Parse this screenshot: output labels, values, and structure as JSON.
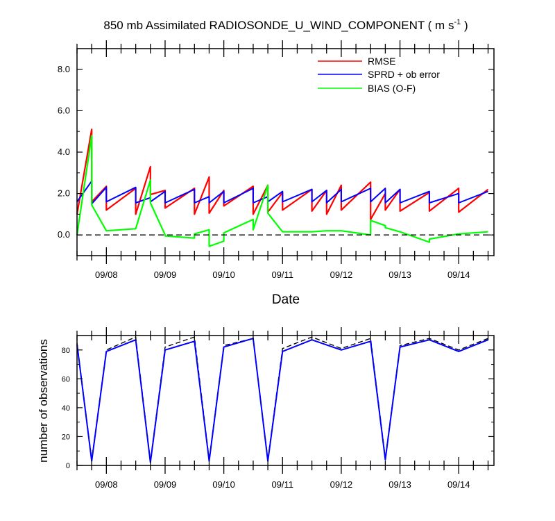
{
  "title_main": "850 mb Assimilated RADIOSONDE_U_WIND_COMPONENT ( m s",
  "title_exp": "-1",
  "title_close": " )",
  "colors": {
    "rmse": "#ff0000",
    "sprd": "#0000ff",
    "bias": "#00ff00",
    "zero": "#000000",
    "obs": "#000000"
  },
  "chart_data": [
    {
      "type": "line",
      "ylim": [
        -1.0,
        9.0
      ],
      "xlim": [
        -0.5,
        6.6
      ],
      "yticks": [
        0,
        2,
        4,
        6,
        8
      ],
      "ytick_labels": [
        "0.0",
        "2.0",
        "4.0",
        "6.0",
        "8.0"
      ],
      "xlabel": "Date",
      "xtick_positions": [
        0,
        1,
        2,
        3,
        4,
        5,
        6
      ],
      "xtick_labels": [
        "09/08",
        "09/09",
        "09/10",
        "09/11",
        "09/12",
        "09/13",
        "09/14"
      ],
      "legend": {
        "position": "top-right",
        "entries": [
          "RMSE",
          "SPRD + ob error",
          "BIAS (O-F)"
        ]
      },
      "series": [
        {
          "name": "RMSE",
          "x": [
            -0.5,
            -0.25,
            -0.25,
            0,
            0,
            0.5,
            0.5,
            0.75,
            0.75,
            1,
            1,
            1.5,
            1.5,
            1.75,
            1.75,
            2,
            2,
            2.5,
            2.5,
            2.75,
            2.75,
            3,
            3,
            3.5,
            3.5,
            3.75,
            3.75,
            4,
            4,
            4.5,
            4.5,
            4.75,
            4.75,
            5,
            5,
            5.5,
            5.5,
            6,
            6,
            6.5
          ],
          "y": [
            1.0,
            5.1,
            1.6,
            2.35,
            1.2,
            2.25,
            1.0,
            3.3,
            1.95,
            2.15,
            1.3,
            2.25,
            1.0,
            2.8,
            1.05,
            2.15,
            1.4,
            2.35,
            1.0,
            2.4,
            1.1,
            2.05,
            1.2,
            2.2,
            1.15,
            2.15,
            1.0,
            2.4,
            1.2,
            2.55,
            0.75,
            2.0,
            1.2,
            2.2,
            1.15,
            2.05,
            1.15,
            2.25,
            1.1,
            2.2
          ]
        },
        {
          "name": "SPRD + ob error",
          "x": [
            -0.5,
            -0.25,
            -0.25,
            0,
            0,
            0.5,
            0.5,
            0.75,
            0.75,
            1,
            1,
            1.5,
            1.5,
            1.75,
            1.75,
            2,
            2,
            2.5,
            2.5,
            2.75,
            2.75,
            3,
            3,
            3.5,
            3.5,
            3.75,
            3.75,
            4,
            4,
            4.5,
            4.5,
            4.75,
            4.75,
            5,
            5,
            5.5,
            5.5,
            6,
            6,
            6.5
          ],
          "y": [
            1.6,
            2.6,
            1.5,
            2.3,
            1.6,
            2.3,
            1.55,
            1.8,
            1.6,
            2.1,
            1.55,
            2.2,
            1.55,
            1.85,
            1.55,
            2.1,
            1.55,
            2.25,
            1.55,
            1.85,
            1.6,
            2.1,
            1.6,
            2.2,
            1.6,
            2.15,
            1.55,
            2.2,
            1.6,
            2.25,
            1.6,
            2.25,
            1.55,
            2.2,
            1.55,
            2.1,
            1.55,
            2.0,
            1.55,
            2.1
          ]
        },
        {
          "name": "BIAS (O-F)",
          "x": [
            -0.5,
            -0.25,
            -0.25,
            0,
            0,
            0.5,
            0.5,
            0.75,
            0.75,
            1,
            1,
            1.5,
            1.5,
            1.75,
            1.75,
            2,
            2,
            2.5,
            2.5,
            2.75,
            2.75,
            3,
            3,
            3.5,
            3.5,
            3.75,
            3.75,
            4,
            4,
            4.5,
            4.5,
            4.75,
            4.75,
            5,
            5,
            5.5,
            5.5,
            6,
            6,
            6.5
          ],
          "y": [
            0.0,
            4.8,
            1.45,
            0.2,
            0.2,
            0.3,
            0.3,
            2.65,
            1.55,
            0.0,
            -0.05,
            -0.15,
            0.05,
            0.25,
            -0.55,
            -0.3,
            0.1,
            0.75,
            0.25,
            2.4,
            1.05,
            0.15,
            0.15,
            0.15,
            0.15,
            0.2,
            0.2,
            0.2,
            0.2,
            0.0,
            0.7,
            0.45,
            0.35,
            0.15,
            0.15,
            -0.35,
            -0.2,
            0.05,
            0.05,
            0.15
          ]
        }
      ]
    },
    {
      "type": "line",
      "ylabel": "number of observations",
      "ylim": [
        0,
        90
      ],
      "xlim": [
        -0.5,
        6.6
      ],
      "yticks": [
        0,
        20,
        40,
        60,
        80
      ],
      "ytick_labels": [
        "0",
        "20",
        "40",
        "60",
        "80"
      ],
      "xtick_positions": [
        0,
        1,
        2,
        3,
        4,
        5,
        6
      ],
      "xtick_labels": [
        "09/08",
        "09/09",
        "09/10",
        "09/11",
        "09/12",
        "09/13",
        "09/14"
      ],
      "series": [
        {
          "name": "observations (dashed)",
          "x": [
            -0.5,
            -0.25,
            0,
            0.5,
            0.75,
            1,
            1.5,
            1.75,
            2,
            2.5,
            2.75,
            3,
            3.5,
            4,
            4.5,
            4.75,
            5,
            5.5,
            6,
            6.5
          ],
          "y": [
            85,
            4,
            80,
            89,
            3,
            82,
            89,
            4,
            83,
            88,
            4,
            81,
            89,
            81,
            88,
            5,
            83,
            88,
            80,
            88
          ]
        },
        {
          "name": "observations (blue)",
          "x": [
            -0.5,
            -0.25,
            0,
            0.5,
            0.75,
            1,
            1.5,
            1.75,
            2,
            2.5,
            2.75,
            3,
            3.5,
            4,
            4.5,
            4.75,
            5,
            5.5,
            6,
            6.5
          ],
          "y": [
            84,
            3,
            79,
            87,
            2,
            80,
            86,
            3,
            82,
            88,
            3,
            79,
            87,
            80,
            86,
            4,
            82,
            87,
            79,
            87
          ]
        }
      ]
    }
  ]
}
